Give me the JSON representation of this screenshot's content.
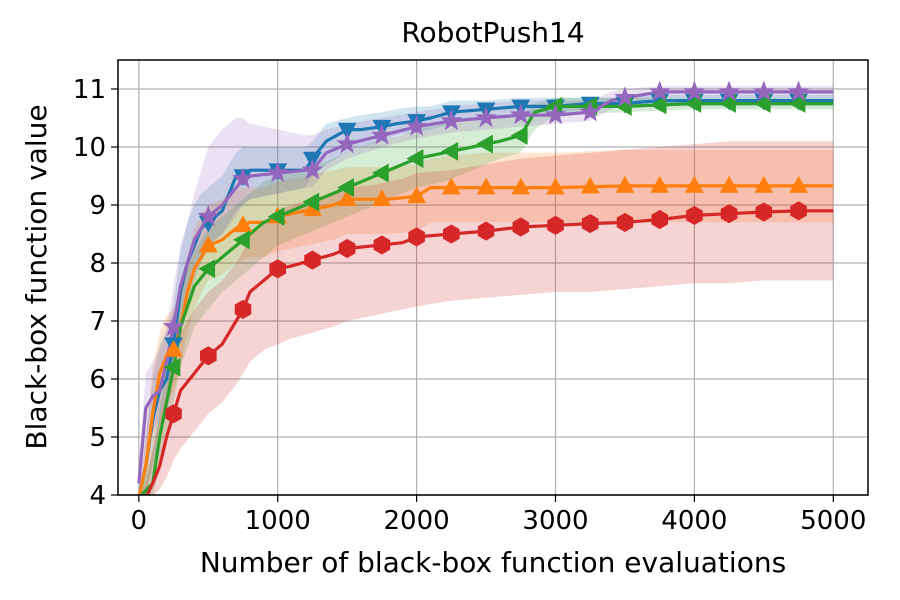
{
  "chart_data": {
    "type": "line",
    "title": "RobotPush14",
    "xlabel": "Number of black-box function evaluations",
    "ylabel": "Black-box function value",
    "xlim": [
      -150,
      5250
    ],
    "ylim": [
      4,
      11.5
    ],
    "xticks": [
      0,
      1000,
      2000,
      3000,
      4000,
      5000
    ],
    "yticks": [
      4,
      5,
      6,
      7,
      8,
      9,
      10,
      11
    ],
    "grid": true,
    "series": [
      {
        "color": "#1f77b4",
        "marker": "triangle-down",
        "x": [
          0,
          50,
          100,
          150,
          200,
          250,
          300,
          350,
          400,
          450,
          500,
          600,
          700,
          750,
          800,
          1000,
          1200,
          1250,
          1350,
          1500,
          1600,
          1750,
          1850,
          2000,
          2100,
          2250,
          2500,
          2750,
          2850,
          3000,
          3250,
          3500,
          3750,
          4000,
          4250,
          4500,
          4750,
          5000
        ],
        "y": [
          3.6,
          4.5,
          5.3,
          5.8,
          6.0,
          6.6,
          7.5,
          8.0,
          8.3,
          8.6,
          8.7,
          8.9,
          9.5,
          9.5,
          9.6,
          9.6,
          9.6,
          9.8,
          10.1,
          10.3,
          10.3,
          10.35,
          10.4,
          10.45,
          10.5,
          10.6,
          10.65,
          10.7,
          10.7,
          10.7,
          10.75,
          10.75,
          10.8,
          10.8,
          10.8,
          10.8,
          10.8,
          10.8
        ],
        "lower": [
          3.6,
          4.0,
          4.5,
          5.0,
          5.4,
          6.0,
          6.8,
          7.3,
          7.7,
          8.0,
          8.3,
          8.5,
          8.9,
          9.0,
          9.1,
          9.2,
          9.3,
          9.5,
          9.7,
          9.9,
          10.0,
          10.1,
          10.2,
          10.25,
          10.3,
          10.4,
          10.5,
          10.55,
          10.6,
          10.6,
          10.65,
          10.7,
          10.7,
          10.7,
          10.7,
          10.7,
          10.7,
          10.7
        ],
        "upper": [
          3.6,
          5.0,
          6.0,
          6.6,
          6.8,
          7.3,
          8.2,
          8.7,
          9.0,
          9.2,
          9.3,
          9.5,
          9.9,
          10.0,
          10.0,
          10.0,
          10.0,
          10.1,
          10.4,
          10.5,
          10.55,
          10.6,
          10.65,
          10.7,
          10.7,
          10.8,
          10.8,
          10.85,
          10.85,
          10.85,
          10.85,
          10.85,
          10.9,
          10.9,
          10.9,
          10.9,
          10.9,
          10.9
        ],
        "markers_x": [
          250,
          500,
          750,
          1000,
          1250,
          1500,
          1750,
          2000,
          2250,
          2500,
          2750,
          3000,
          3250,
          3500,
          3750,
          4000,
          4250,
          4500,
          4750
        ]
      },
      {
        "color": "#ff7f0e",
        "marker": "triangle-up",
        "x": [
          0,
          50,
          100,
          150,
          200,
          250,
          300,
          350,
          400,
          450,
          500,
          600,
          700,
          800,
          900,
          1000,
          1200,
          1400,
          1500,
          1800,
          2000,
          2100,
          2250,
          2500,
          2750,
          3000,
          3500,
          4000,
          4500,
          5000
        ],
        "y": [
          3.8,
          4.5,
          5.4,
          6.1,
          6.4,
          6.5,
          6.9,
          7.5,
          7.9,
          8.1,
          8.3,
          8.4,
          8.6,
          8.7,
          8.7,
          8.8,
          8.9,
          9.0,
          9.1,
          9.1,
          9.15,
          9.3,
          9.3,
          9.3,
          9.3,
          9.3,
          9.33,
          9.33,
          9.33,
          9.33
        ],
        "lower": [
          3.8,
          4.0,
          4.6,
          5.2,
          5.6,
          5.8,
          6.2,
          6.8,
          7.2,
          7.5,
          7.7,
          7.8,
          8.0,
          8.1,
          8.1,
          8.2,
          8.3,
          8.4,
          8.5,
          8.5,
          8.55,
          8.7,
          8.7,
          8.7,
          8.7,
          8.7,
          8.7,
          8.7,
          8.7,
          8.7
        ],
        "upper": [
          3.8,
          5.0,
          6.2,
          6.8,
          7.1,
          7.2,
          7.5,
          8.1,
          8.6,
          8.8,
          9.0,
          9.1,
          9.3,
          9.3,
          9.3,
          9.4,
          9.5,
          9.6,
          9.65,
          9.65,
          9.7,
          9.8,
          9.85,
          9.9,
          9.9,
          9.9,
          9.95,
          9.95,
          9.95,
          9.95
        ],
        "markers_x": [
          250,
          500,
          750,
          1000,
          1250,
          1500,
          1750,
          2000,
          2250,
          2500,
          2750,
          3000,
          3250,
          3500,
          3750,
          4000,
          4250,
          4500,
          4750
        ]
      },
      {
        "color": "#2ca02c",
        "marker": "triangle-left",
        "x": [
          0,
          100,
          150,
          200,
          250,
          300,
          400,
          500,
          600,
          700,
          800,
          900,
          1000,
          1200,
          1300,
          1500,
          1700,
          1900,
          2000,
          2200,
          2400,
          2600,
          2750,
          2800,
          2850,
          3000,
          3500,
          4000,
          4500,
          5000
        ],
        "y": [
          3.6,
          4.2,
          5.0,
          5.6,
          6.2,
          6.9,
          7.6,
          7.9,
          8.1,
          8.3,
          8.5,
          8.7,
          8.8,
          9.0,
          9.1,
          9.3,
          9.5,
          9.7,
          9.8,
          9.9,
          10.0,
          10.1,
          10.2,
          10.4,
          10.6,
          10.7,
          10.7,
          10.75,
          10.75,
          10.75
        ],
        "lower": [
          3.6,
          3.8,
          4.5,
          5.0,
          5.6,
          6.2,
          6.9,
          7.2,
          7.5,
          7.7,
          7.9,
          8.1,
          8.3,
          8.5,
          8.6,
          8.8,
          9.0,
          9.2,
          9.3,
          9.4,
          9.6,
          9.8,
          9.9,
          10.1,
          10.3,
          10.55,
          10.6,
          10.65,
          10.65,
          10.65
        ],
        "upper": [
          3.6,
          4.7,
          5.5,
          6.2,
          6.8,
          7.6,
          8.2,
          8.6,
          8.8,
          9.0,
          9.2,
          9.4,
          9.5,
          9.6,
          9.7,
          9.9,
          10.1,
          10.2,
          10.3,
          10.4,
          10.45,
          10.5,
          10.55,
          10.65,
          10.75,
          10.85,
          10.85,
          10.85,
          10.85,
          10.85
        ],
        "markers_x": [
          250,
          500,
          750,
          1000,
          1250,
          1500,
          1750,
          2000,
          2250,
          2500,
          2750,
          3000,
          3250,
          3500,
          3750,
          4000,
          4250,
          4500,
          4750
        ]
      },
      {
        "color": "#d62728",
        "marker": "hexagon",
        "x": [
          0,
          50,
          100,
          150,
          200,
          250,
          300,
          400,
          500,
          600,
          700,
          750,
          800,
          900,
          1000,
          1100,
          1250,
          1400,
          1500,
          1700,
          1900,
          2000,
          2250,
          2500,
          2750,
          3000,
          3250,
          3500,
          3750,
          4000,
          4250,
          4500,
          4750,
          5000
        ],
        "y": [
          3.6,
          3.8,
          4.2,
          4.5,
          5.0,
          5.4,
          5.8,
          6.1,
          6.4,
          6.6,
          7.0,
          7.2,
          7.5,
          7.7,
          7.9,
          7.95,
          8.05,
          8.15,
          8.25,
          8.3,
          8.35,
          8.45,
          8.5,
          8.55,
          8.62,
          8.65,
          8.68,
          8.7,
          8.75,
          8.82,
          8.85,
          8.88,
          8.9,
          8.9
        ],
        "lower": [
          3.6,
          3.7,
          3.9,
          4.1,
          4.3,
          4.6,
          4.8,
          5.1,
          5.4,
          5.6,
          5.9,
          6.1,
          6.3,
          6.5,
          6.6,
          6.7,
          6.8,
          6.9,
          7.0,
          7.1,
          7.2,
          7.25,
          7.35,
          7.4,
          7.45,
          7.5,
          7.5,
          7.55,
          7.6,
          7.65,
          7.65,
          7.7,
          7.7,
          7.7
        ],
        "upper": [
          3.6,
          4.2,
          4.8,
          5.3,
          5.8,
          6.4,
          6.8,
          7.2,
          7.5,
          7.7,
          8.0,
          8.2,
          8.5,
          8.7,
          8.9,
          9.0,
          9.1,
          9.2,
          9.3,
          9.35,
          9.45,
          9.55,
          9.6,
          9.7,
          9.8,
          9.85,
          9.9,
          9.95,
          10.0,
          10.05,
          10.1,
          10.1,
          10.1,
          10.1
        ],
        "markers_x": [
          250,
          500,
          750,
          1000,
          1250,
          1500,
          1750,
          2000,
          2250,
          2500,
          2750,
          3000,
          3250,
          3500,
          3750,
          4000,
          4250,
          4500,
          4750
        ]
      },
      {
        "color": "#9467bd",
        "marker": "star",
        "x": [
          0,
          50,
          100,
          150,
          200,
          250,
          300,
          350,
          400,
          450,
          500,
          600,
          700,
          750,
          800,
          1000,
          1200,
          1250,
          1350,
          1500,
          1750,
          2000,
          2250,
          2500,
          2750,
          3000,
          3250,
          3400,
          3500,
          3750,
          4000,
          4250,
          4500,
          4750,
          5000
        ],
        "y": [
          4.2,
          5.5,
          5.7,
          5.8,
          6.3,
          6.9,
          7.6,
          8.0,
          8.4,
          8.6,
          8.8,
          9.0,
          9.3,
          9.45,
          9.5,
          9.55,
          9.6,
          9.6,
          9.9,
          10.05,
          10.2,
          10.35,
          10.45,
          10.5,
          10.55,
          10.55,
          10.6,
          10.8,
          10.85,
          10.95,
          10.95,
          10.95,
          10.95,
          10.95,
          10.95
        ],
        "lower": [
          4.0,
          4.8,
          5.1,
          5.3,
          5.8,
          6.3,
          7.0,
          7.5,
          7.9,
          8.1,
          8.3,
          8.5,
          8.8,
          9.0,
          9.1,
          9.2,
          9.3,
          9.3,
          9.6,
          9.8,
          10.0,
          10.15,
          10.25,
          10.3,
          10.35,
          10.4,
          10.45,
          10.65,
          10.75,
          10.85,
          10.85,
          10.85,
          10.85,
          10.85,
          10.85
        ],
        "upper": [
          4.5,
          6.1,
          6.3,
          6.5,
          6.9,
          7.6,
          8.3,
          8.7,
          9.2,
          9.6,
          10.0,
          10.3,
          10.5,
          10.5,
          10.4,
          10.3,
          10.2,
          10.2,
          10.3,
          10.4,
          10.5,
          10.6,
          10.7,
          10.75,
          10.8,
          10.8,
          10.8,
          10.95,
          11.0,
          11.05,
          11.05,
          11.05,
          11.05,
          11.05,
          11.05
        ],
        "markers_x": [
          250,
          500,
          750,
          1000,
          1250,
          1500,
          1750,
          2000,
          2250,
          2500,
          2750,
          3000,
          3250,
          3500,
          3750,
          4000,
          4250,
          4500,
          4750
        ]
      }
    ]
  }
}
